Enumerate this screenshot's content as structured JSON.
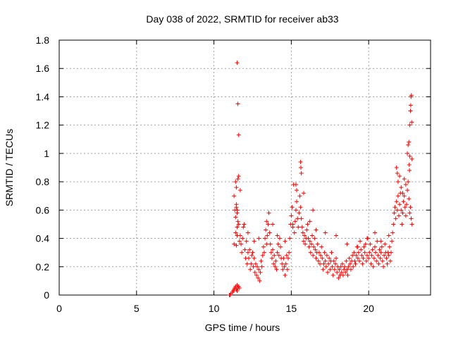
{
  "chart_data": {
    "type": "scatter",
    "title": "Day 038 of 2022, SRMTID for receiver ab33",
    "xlabel": "GPS time / hours",
    "ylabel": "SRMTID / TECUs",
    "xlim": [
      0,
      24
    ],
    "ylim": [
      0,
      1.8
    ],
    "xticks": [
      0,
      5,
      10,
      15,
      20
    ],
    "xtick_labels": [
      "0",
      "5",
      "10",
      "15",
      "20"
    ],
    "yticks": [
      0,
      0.2,
      0.4,
      0.6,
      0.8,
      1.0,
      1.2,
      1.4,
      1.6,
      1.8
    ],
    "ytick_labels": [
      "0",
      "0.2",
      "0.4",
      "0.6",
      "0.8",
      "1",
      "1.2",
      "1.4",
      "1.6",
      "1.8"
    ],
    "grid": true,
    "marker": "plus",
    "series": [
      {
        "name": "SRMTID",
        "color": "#ff0000",
        "x": [
          11.0,
          11.05,
          11.1,
          11.2,
          11.25,
          11.3,
          11.35,
          11.4,
          11.45,
          11.5,
          11.5,
          11.55,
          11.6,
          11.65,
          11.4,
          11.45,
          11.5,
          11.55,
          11.45,
          11.5,
          11.3,
          11.35,
          11.4,
          11.45,
          11.5,
          11.55,
          11.6,
          11.65,
          11.7,
          11.75,
          11.8,
          11.85,
          11.9,
          11.95,
          12.0,
          12.05,
          12.1,
          12.15,
          12.2,
          12.25,
          12.3,
          12.35,
          12.4,
          12.45,
          12.5,
          12.55,
          12.6,
          12.65,
          12.7,
          12.75,
          12.8,
          12.85,
          12.9,
          12.95,
          13.0,
          13.05,
          13.1,
          13.15,
          13.2,
          13.25,
          13.3,
          13.35,
          13.4,
          13.45,
          13.5,
          13.55,
          13.6,
          13.65,
          13.7,
          13.75,
          13.8,
          13.85,
          13.9,
          13.95,
          14.0,
          14.05,
          14.1,
          14.15,
          14.2,
          14.25,
          14.3,
          14.35,
          14.4,
          14.45,
          14.5,
          14.55,
          14.6,
          14.65,
          14.7,
          14.75,
          14.8,
          14.85,
          14.9,
          14.95,
          15.0,
          15.05,
          15.1,
          15.15,
          15.2,
          15.25,
          15.3,
          15.35,
          15.4,
          15.45,
          15.5,
          15.55,
          15.6,
          15.65,
          15.7,
          15.75,
          15.8,
          15.85,
          15.9,
          15.95,
          16.0,
          16.05,
          16.1,
          16.15,
          16.2,
          16.25,
          16.3,
          16.35,
          16.4,
          16.45,
          16.5,
          16.55,
          16.6,
          16.65,
          16.7,
          16.75,
          16.8,
          16.85,
          16.9,
          16.95,
          17.0,
          17.05,
          17.1,
          17.15,
          17.2,
          17.25,
          17.3,
          17.35,
          17.4,
          17.45,
          17.5,
          17.55,
          17.6,
          17.65,
          17.7,
          17.75,
          17.8,
          17.85,
          17.9,
          17.95,
          18.0,
          18.05,
          18.1,
          18.15,
          18.2,
          18.25,
          18.3,
          18.35,
          18.4,
          18.45,
          18.5,
          18.55,
          18.6,
          18.65,
          18.7,
          18.75,
          18.8,
          18.85,
          18.9,
          18.95,
          19.0,
          19.05,
          19.1,
          19.15,
          19.2,
          19.25,
          19.3,
          19.35,
          19.4,
          19.45,
          19.5,
          19.55,
          19.6,
          19.65,
          19.7,
          19.75,
          19.8,
          19.85,
          19.9,
          19.95,
          20.0,
          20.05,
          20.1,
          20.15,
          20.2,
          20.25,
          20.3,
          20.35,
          20.4,
          20.45,
          20.5,
          20.55,
          20.6,
          20.65,
          20.7,
          20.75,
          20.8,
          20.85,
          20.9,
          20.95,
          21.0,
          21.05,
          21.1,
          21.15,
          21.2,
          21.25,
          21.3,
          21.35,
          21.4,
          21.45,
          21.5,
          21.55,
          21.6,
          21.65,
          21.7,
          21.75,
          21.8,
          21.85,
          21.9,
          21.95,
          22.0,
          22.05,
          22.1,
          22.15,
          22.2,
          22.25,
          22.3,
          22.35,
          22.4,
          22.45,
          22.5,
          22.55,
          22.6,
          22.65,
          22.7,
          22.75,
          22.8,
          15.6,
          15.62,
          15.65,
          15.3,
          15.35,
          15.8,
          16.4,
          21.8,
          21.85,
          21.9,
          22.0,
          22.1,
          22.2,
          22.3,
          22.4,
          22.5,
          22.55,
          22.6,
          22.65,
          22.7,
          22.72,
          22.74,
          22.76,
          22.78,
          22.8,
          22.62,
          22.64,
          22.66,
          11.3,
          11.4,
          11.6,
          11.7,
          12.2,
          12.6,
          12.9,
          13.4,
          13.8,
          14.1,
          14.6,
          15.1,
          16.2,
          16.6,
          17.2,
          17.9,
          18.6,
          19.3,
          19.9,
          20.4,
          20.8,
          21.3,
          11.5,
          11.55,
          11.6,
          11.45,
          11.5
        ],
        "y": [
          0.0,
          0.0,
          0.01,
          0.02,
          0.03,
          0.04,
          0.05,
          0.06,
          0.04,
          0.03,
          0.07,
          0.05,
          0.06,
          0.05,
          0.55,
          0.62,
          0.48,
          0.52,
          0.35,
          0.42,
          0.36,
          0.6,
          0.44,
          0.76,
          0.58,
          0.82,
          0.5,
          0.38,
          0.42,
          0.36,
          0.3,
          0.4,
          0.48,
          0.5,
          0.32,
          0.26,
          0.38,
          0.22,
          0.3,
          0.26,
          0.32,
          0.18,
          0.22,
          0.28,
          0.3,
          0.2,
          0.26,
          0.16,
          0.22,
          0.14,
          0.2,
          0.12,
          0.18,
          0.1,
          0.16,
          0.24,
          0.2,
          0.28,
          0.34,
          0.3,
          0.4,
          0.46,
          0.52,
          0.42,
          0.5,
          0.58,
          0.44,
          0.36,
          0.3,
          0.26,
          0.32,
          0.22,
          0.28,
          0.2,
          0.24,
          0.18,
          0.3,
          0.36,
          0.28,
          0.4,
          0.34,
          0.26,
          0.22,
          0.18,
          0.26,
          0.2,
          0.14,
          0.22,
          0.28,
          0.18,
          0.26,
          0.3,
          0.4,
          0.5,
          0.56,
          0.62,
          0.48,
          0.78,
          0.44,
          0.52,
          0.6,
          0.66,
          0.54,
          0.48,
          0.58,
          0.7,
          0.62,
          0.54,
          0.48,
          0.44,
          0.38,
          0.42,
          0.36,
          0.4,
          0.46,
          0.5,
          0.4,
          0.34,
          0.38,
          0.3,
          0.36,
          0.42,
          0.28,
          0.34,
          0.4,
          0.32,
          0.26,
          0.3,
          0.36,
          0.24,
          0.3,
          0.22,
          0.28,
          0.34,
          0.26,
          0.18,
          0.22,
          0.3,
          0.24,
          0.2,
          0.28,
          0.16,
          0.22,
          0.26,
          0.18,
          0.24,
          0.3,
          0.2,
          0.14,
          0.24,
          0.18,
          0.22,
          0.26,
          0.16,
          0.2,
          0.12,
          0.18,
          0.14,
          0.2,
          0.16,
          0.22,
          0.14,
          0.18,
          0.2,
          0.16,
          0.24,
          0.18,
          0.14,
          0.2,
          0.26,
          0.22,
          0.18,
          0.24,
          0.28,
          0.2,
          0.3,
          0.24,
          0.22,
          0.28,
          0.34,
          0.26,
          0.3,
          0.24,
          0.38,
          0.32,
          0.28,
          0.22,
          0.26,
          0.34,
          0.3,
          0.36,
          0.24,
          0.28,
          0.4,
          0.26,
          0.3,
          0.36,
          0.22,
          0.28,
          0.32,
          0.2,
          0.26,
          0.34,
          0.3,
          0.24,
          0.38,
          0.28,
          0.22,
          0.32,
          0.26,
          0.3,
          0.34,
          0.24,
          0.2,
          0.28,
          0.36,
          0.3,
          0.26,
          0.22,
          0.3,
          0.28,
          0.34,
          0.24,
          0.3,
          0.38,
          0.44,
          0.5,
          0.58,
          0.62,
          0.54,
          0.66,
          0.6,
          0.7,
          0.56,
          0.64,
          0.72,
          0.6,
          0.5,
          0.58,
          0.66,
          0.7,
          0.62,
          0.56,
          0.64,
          0.74,
          0.8,
          0.68,
          0.58,
          0.62,
          0.54,
          0.5,
          0.94,
          0.9,
          0.86,
          0.78,
          0.74,
          0.72,
          0.6,
          0.9,
          0.86,
          0.8,
          0.84,
          0.76,
          0.72,
          0.82,
          0.78,
          1.0,
          1.06,
          1.08,
          1.2,
          1.3,
          1.34,
          1.4,
          1.41,
          1.22,
          0.96,
          0.92,
          0.88,
          0.98,
          0.7,
          0.8,
          0.84,
          0.74,
          0.44,
          0.38,
          0.4,
          0.36,
          0.5,
          0.42,
          0.38,
          0.5,
          0.52,
          0.46,
          0.44,
          0.42,
          0.36,
          0.34,
          0.4,
          0.44,
          0.38,
          0.42,
          1.64,
          1.35,
          1.13,
          0.64,
          0.6
        ]
      }
    ]
  }
}
